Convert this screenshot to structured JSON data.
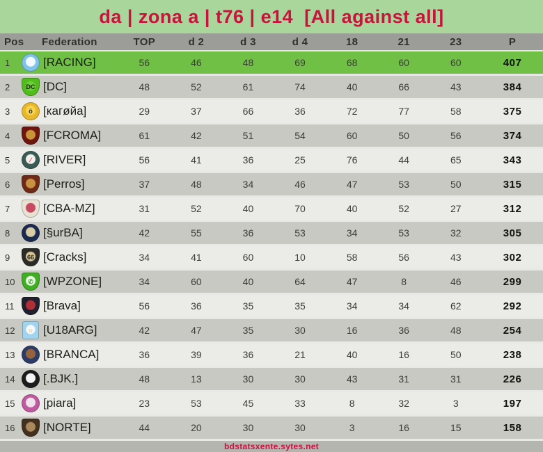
{
  "title": "da | zona a | t76 | e14  [All against all]",
  "footer": {
    "site_label": "bdstatsxente.sytes.net"
  },
  "colors": {
    "title_bg": "#a9d69b",
    "accent_red": "#cb123e",
    "header_bg": "#9c9c98",
    "row_highlight": "#6fc045",
    "row_light": "#ebebe7",
    "row_dark": "#c9c9c3",
    "separator": "#e8e8e4",
    "footer_bg": "#b5b5af",
    "text_dark": "#2f2f2b"
  },
  "table": {
    "headers": [
      "Pos",
      "Federation",
      "TOP",
      "d 2",
      "d 3",
      "d 4",
      "18",
      "21",
      "23",
      "P"
    ],
    "rows": [
      {
        "pos": 1,
        "team": "[RACING]",
        "values": [
          56,
          46,
          48,
          69,
          68,
          60,
          60
        ],
        "points": 407,
        "highlight": true,
        "badge": {
          "icon": "racing-crest-icon",
          "shape": "circle",
          "c1": "#7fc3e8",
          "c2": "#f4fbff",
          "glyph": "",
          "glyph_color": "#3a78b8"
        }
      },
      {
        "pos": 2,
        "team": "[DC]",
        "values": [
          48,
          52,
          61,
          74,
          40,
          66,
          43
        ],
        "points": 384,
        "highlight": false,
        "badge": {
          "icon": "dc-crest-icon",
          "shape": "shield",
          "c1": "#50bd1c",
          "c2": "#6ccf38",
          "glyph": "DC",
          "glyph_color": "#1d1d15"
        }
      },
      {
        "pos": 3,
        "team": "[кагøйа]",
        "values": [
          29,
          37,
          66,
          36,
          72,
          77,
          58
        ],
        "points": 375,
        "highlight": false,
        "badge": {
          "icon": "karoya-crest-icon",
          "shape": "circle",
          "c1": "#e8b82a",
          "c2": "#f6d44e",
          "glyph": "ö",
          "glyph_color": "#2c2c24"
        }
      },
      {
        "pos": 4,
        "team": "[FCROMA]",
        "values": [
          61,
          42,
          51,
          54,
          60,
          50,
          56
        ],
        "points": 374,
        "highlight": false,
        "badge": {
          "icon": "fcroma-crest-icon",
          "shape": "shield",
          "c1": "#6e150d",
          "c2": "#c99437",
          "glyph": "",
          "glyph_color": "#e8c46c"
        }
      },
      {
        "pos": 5,
        "team": "[RIVER]",
        "values": [
          56,
          41,
          36,
          25,
          76,
          44,
          65
        ],
        "points": 343,
        "highlight": false,
        "badge": {
          "icon": "river-crest-icon",
          "shape": "circle",
          "c1": "#3a5a56",
          "c2": "#f2f0ea",
          "glyph": "⁄",
          "glyph_color": "#d8363e"
        }
      },
      {
        "pos": 6,
        "team": "[Perros]",
        "values": [
          37,
          48,
          34,
          46,
          47,
          53,
          50
        ],
        "points": 315,
        "highlight": false,
        "badge": {
          "icon": "perros-crest-icon",
          "shape": "shield",
          "c1": "#6e2a16",
          "c2": "#c89240",
          "glyph": "",
          "glyph_color": "#e8c46c"
        }
      },
      {
        "pos": 7,
        "team": "[CBA-MZ]",
        "values": [
          31,
          52,
          40,
          70,
          40,
          52,
          27
        ],
        "points": 312,
        "highlight": false,
        "badge": {
          "icon": "cba-mz-crest-icon",
          "shape": "shield",
          "c1": "#e8e2d2",
          "c2": "#c64b62",
          "glyph": "",
          "glyph_color": "#3a6a3a"
        }
      },
      {
        "pos": 8,
        "team": "[§urBA]",
        "values": [
          42,
          55,
          36,
          53,
          34,
          53,
          32
        ],
        "points": 305,
        "highlight": false,
        "badge": {
          "icon": "surba-crest-icon",
          "shape": "circle",
          "c1": "#1c2a50",
          "c2": "#d8cda6",
          "glyph": "",
          "glyph_color": "#1c2a50"
        }
      },
      {
        "pos": 9,
        "team": "[Cracks]",
        "values": [
          34,
          41,
          60,
          10,
          58,
          56,
          43
        ],
        "points": 302,
        "highlight": false,
        "badge": {
          "icon": "cracks-crest-icon",
          "shape": "shield",
          "c1": "#2b2b28",
          "c2": "#d8c696",
          "glyph": "66",
          "glyph_color": "#201f1b"
        }
      },
      {
        "pos": 10,
        "team": "[WPZONE]",
        "values": [
          34,
          60,
          40,
          64,
          47,
          8,
          46
        ],
        "points": 299,
        "highlight": false,
        "badge": {
          "icon": "wpzone-crest-icon",
          "shape": "shield",
          "c1": "#3fae22",
          "c2": "#e9f6e4",
          "glyph": "✆",
          "glyph_color": "#3fae22"
        }
      },
      {
        "pos": 11,
        "team": "[Brava]",
        "values": [
          56,
          36,
          35,
          35,
          34,
          34,
          62
        ],
        "points": 292,
        "highlight": false,
        "badge": {
          "icon": "brava-crest-icon",
          "shape": "shield",
          "c1": "#20202e",
          "c2": "#b03038",
          "glyph": "",
          "glyph_color": "#b03038"
        }
      },
      {
        "pos": 12,
        "team": "[U18ARG]",
        "values": [
          42,
          47,
          35,
          30,
          16,
          36,
          48
        ],
        "points": 254,
        "highlight": false,
        "badge": {
          "icon": "u18arg-crest-icon",
          "shape": "flag",
          "c1": "#a2d4ee",
          "c2": "#f4f8fa",
          "glyph": "☼",
          "glyph_color": "#d8a420"
        }
      },
      {
        "pos": 13,
        "team": "[BRANCA]",
        "values": [
          36,
          39,
          36,
          21,
          40,
          16,
          50
        ],
        "points": 238,
        "highlight": false,
        "badge": {
          "icon": "branca-crest-icon",
          "shape": "circle",
          "c1": "#2c3c66",
          "c2": "#96643c",
          "glyph": "",
          "glyph_color": "#e8e8e8"
        }
      },
      {
        "pos": 14,
        "team": "[.BJK.]",
        "values": [
          48,
          13,
          30,
          30,
          43,
          31,
          31
        ],
        "points": 226,
        "highlight": false,
        "badge": {
          "icon": "bjk-crest-icon",
          "shape": "circle",
          "c1": "#1c1c1c",
          "c2": "#f4f4f4",
          "glyph": "",
          "glyph_color": "#1c1c1c"
        }
      },
      {
        "pos": 15,
        "team": "[piara]",
        "values": [
          23,
          53,
          45,
          33,
          8,
          32,
          3
        ],
        "points": 197,
        "highlight": false,
        "badge": {
          "icon": "piara-crest-icon",
          "shape": "circle",
          "c1": "#c05aa0",
          "c2": "#f0e4ec",
          "glyph": "",
          "glyph_color": "#c05aa0"
        }
      },
      {
        "pos": 16,
        "team": "[NORTE]",
        "values": [
          44,
          20,
          30,
          30,
          3,
          16,
          15
        ],
        "points": 158,
        "highlight": false,
        "badge": {
          "icon": "norte-crest-icon",
          "shape": "shield",
          "c1": "#44301e",
          "c2": "#a9885c",
          "glyph": "",
          "glyph_color": "#e8c46c"
        }
      }
    ]
  }
}
